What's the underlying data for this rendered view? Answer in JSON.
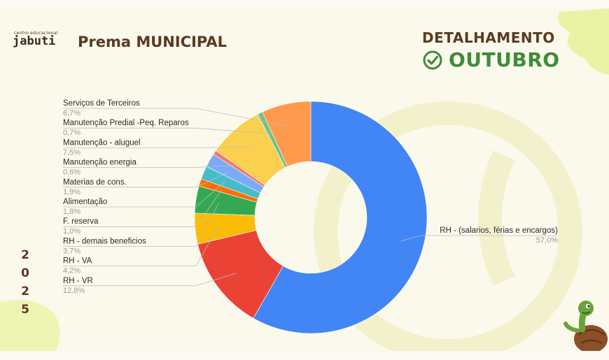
{
  "brand": {
    "logo_small": "centro educacional",
    "logo_main": "jabuti"
  },
  "header": {
    "title": "Prema MUNICIPAL",
    "detail_label": "DETALHAMENTO",
    "month_label": "OUTUBRO"
  },
  "year_digits": [
    "2",
    "0",
    "2",
    "5"
  ],
  "icons": {
    "check": "check-circle-icon",
    "mascot": "turtle-mascot"
  },
  "colors": {
    "title_brown": "#5a3a22",
    "accent_green": "#3f8b3a",
    "leaf_green": "#e9f3a6"
  },
  "chart_data": {
    "type": "pie",
    "style": "donut",
    "title": "",
    "slices": [
      {
        "label": "RH - (salarios, férias e encargos)",
        "pct_label": "57,0%",
        "value": 57.0,
        "color": "#4285f4"
      },
      {
        "label": "RH - VR",
        "pct_label": "12,8%",
        "value": 12.8,
        "color": "#ea4335"
      },
      {
        "label": "RH - VA",
        "pct_label": "4,2%",
        "value": 4.2,
        "color": "#fbbc04"
      },
      {
        "label": "RH - demais beneficios",
        "pct_label": "3,7%",
        "value": 3.7,
        "color": "#34a853"
      },
      {
        "label": "F. reserva",
        "pct_label": "1,0%",
        "value": 1.0,
        "color": "#ff6d01"
      },
      {
        "label": "Alimentação",
        "pct_label": "1,8%",
        "value": 1.8,
        "color": "#46bdc6"
      },
      {
        "label": "Materias de cons.",
        "pct_label": "1,9%",
        "value": 1.9,
        "color": "#7baaf7"
      },
      {
        "label": "Manutenção energia",
        "pct_label": "0,6%",
        "value": 0.6,
        "color": "#f07b72"
      },
      {
        "label": "Manutenção - aluguel",
        "pct_label": "7,5%",
        "value": 7.5,
        "color": "#fcd04f"
      },
      {
        "label": "Manutenção Predial -Peq. Reparos",
        "pct_label": "0,7%",
        "value": 0.7,
        "color": "#71c287"
      },
      {
        "label": "Serviços de Terceiros",
        "pct_label": "6,7%",
        "value": 6.7,
        "color": "#ff994d"
      }
    ],
    "legend": "leader-lines"
  }
}
